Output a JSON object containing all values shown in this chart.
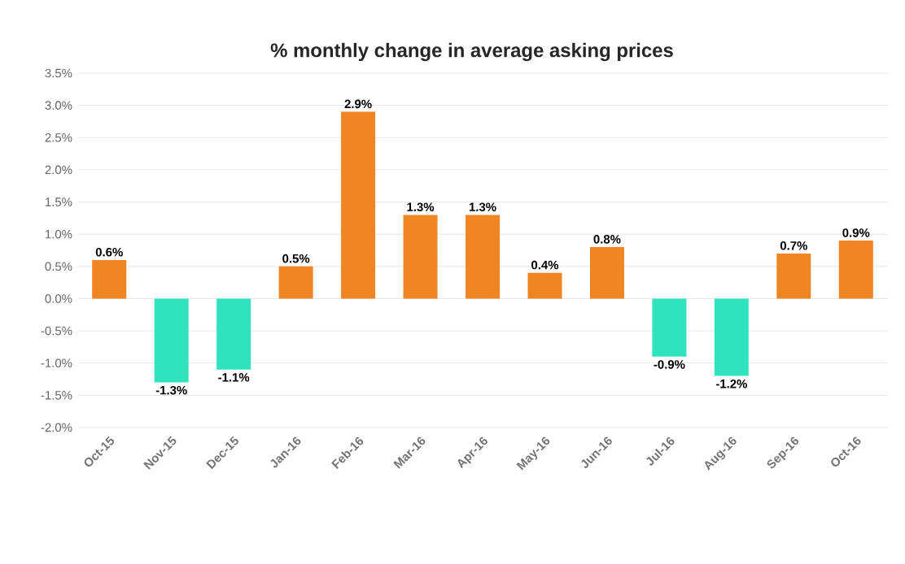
{
  "chart_data": {
    "type": "bar",
    "title": "% monthly change in average asking prices",
    "categories": [
      "Oct-15",
      "Nov-15",
      "Dec-15",
      "Jan-16",
      "Feb-16",
      "Mar-16",
      "Apr-16",
      "May-16",
      "Jun-16",
      "Jul-16",
      "Aug-16",
      "Sep-16",
      "Oct-16"
    ],
    "values": [
      0.6,
      -1.3,
      -1.1,
      0.5,
      2.9,
      1.3,
      1.3,
      0.4,
      0.8,
      -0.9,
      -1.2,
      0.7,
      0.9
    ],
    "value_labels": [
      "0.6%",
      "-1.3%",
      "-1.1%",
      "0.5%",
      "2.9%",
      "1.3%",
      "1.3%",
      "0.4%",
      "0.8%",
      "-0.9%",
      "-1.2%",
      "0.7%",
      "0.9%"
    ],
    "colors": [
      "#ef8523",
      "#2fe3bf",
      "#2fe3bf",
      "#ef8523",
      "#ef8523",
      "#ef8523",
      "#ef8523",
      "#ef8523",
      "#ef8523",
      "#2fe3bf",
      "#2fe3bf",
      "#ef8523",
      "#ef8523"
    ],
    "ylim": [
      -2.0,
      3.5
    ],
    "yticks": [
      {
        "value": -2.0,
        "label": "-2.0%"
      },
      {
        "value": -1.5,
        "label": "-1.5%"
      },
      {
        "value": -1.0,
        "label": "-1.0%"
      },
      {
        "value": -0.5,
        "label": "-0.5%"
      },
      {
        "value": 0.0,
        "label": "0.0%"
      },
      {
        "value": 0.5,
        "label": "0.5%"
      },
      {
        "value": 1.0,
        "label": "1.0%"
      },
      {
        "value": 1.5,
        "label": "1.5%"
      },
      {
        "value": 2.0,
        "label": "2.0%"
      },
      {
        "value": 2.5,
        "label": "2.5%"
      },
      {
        "value": 3.0,
        "label": "3.0%"
      },
      {
        "value": 3.5,
        "label": "3.5%"
      }
    ],
    "grid": "y"
  }
}
